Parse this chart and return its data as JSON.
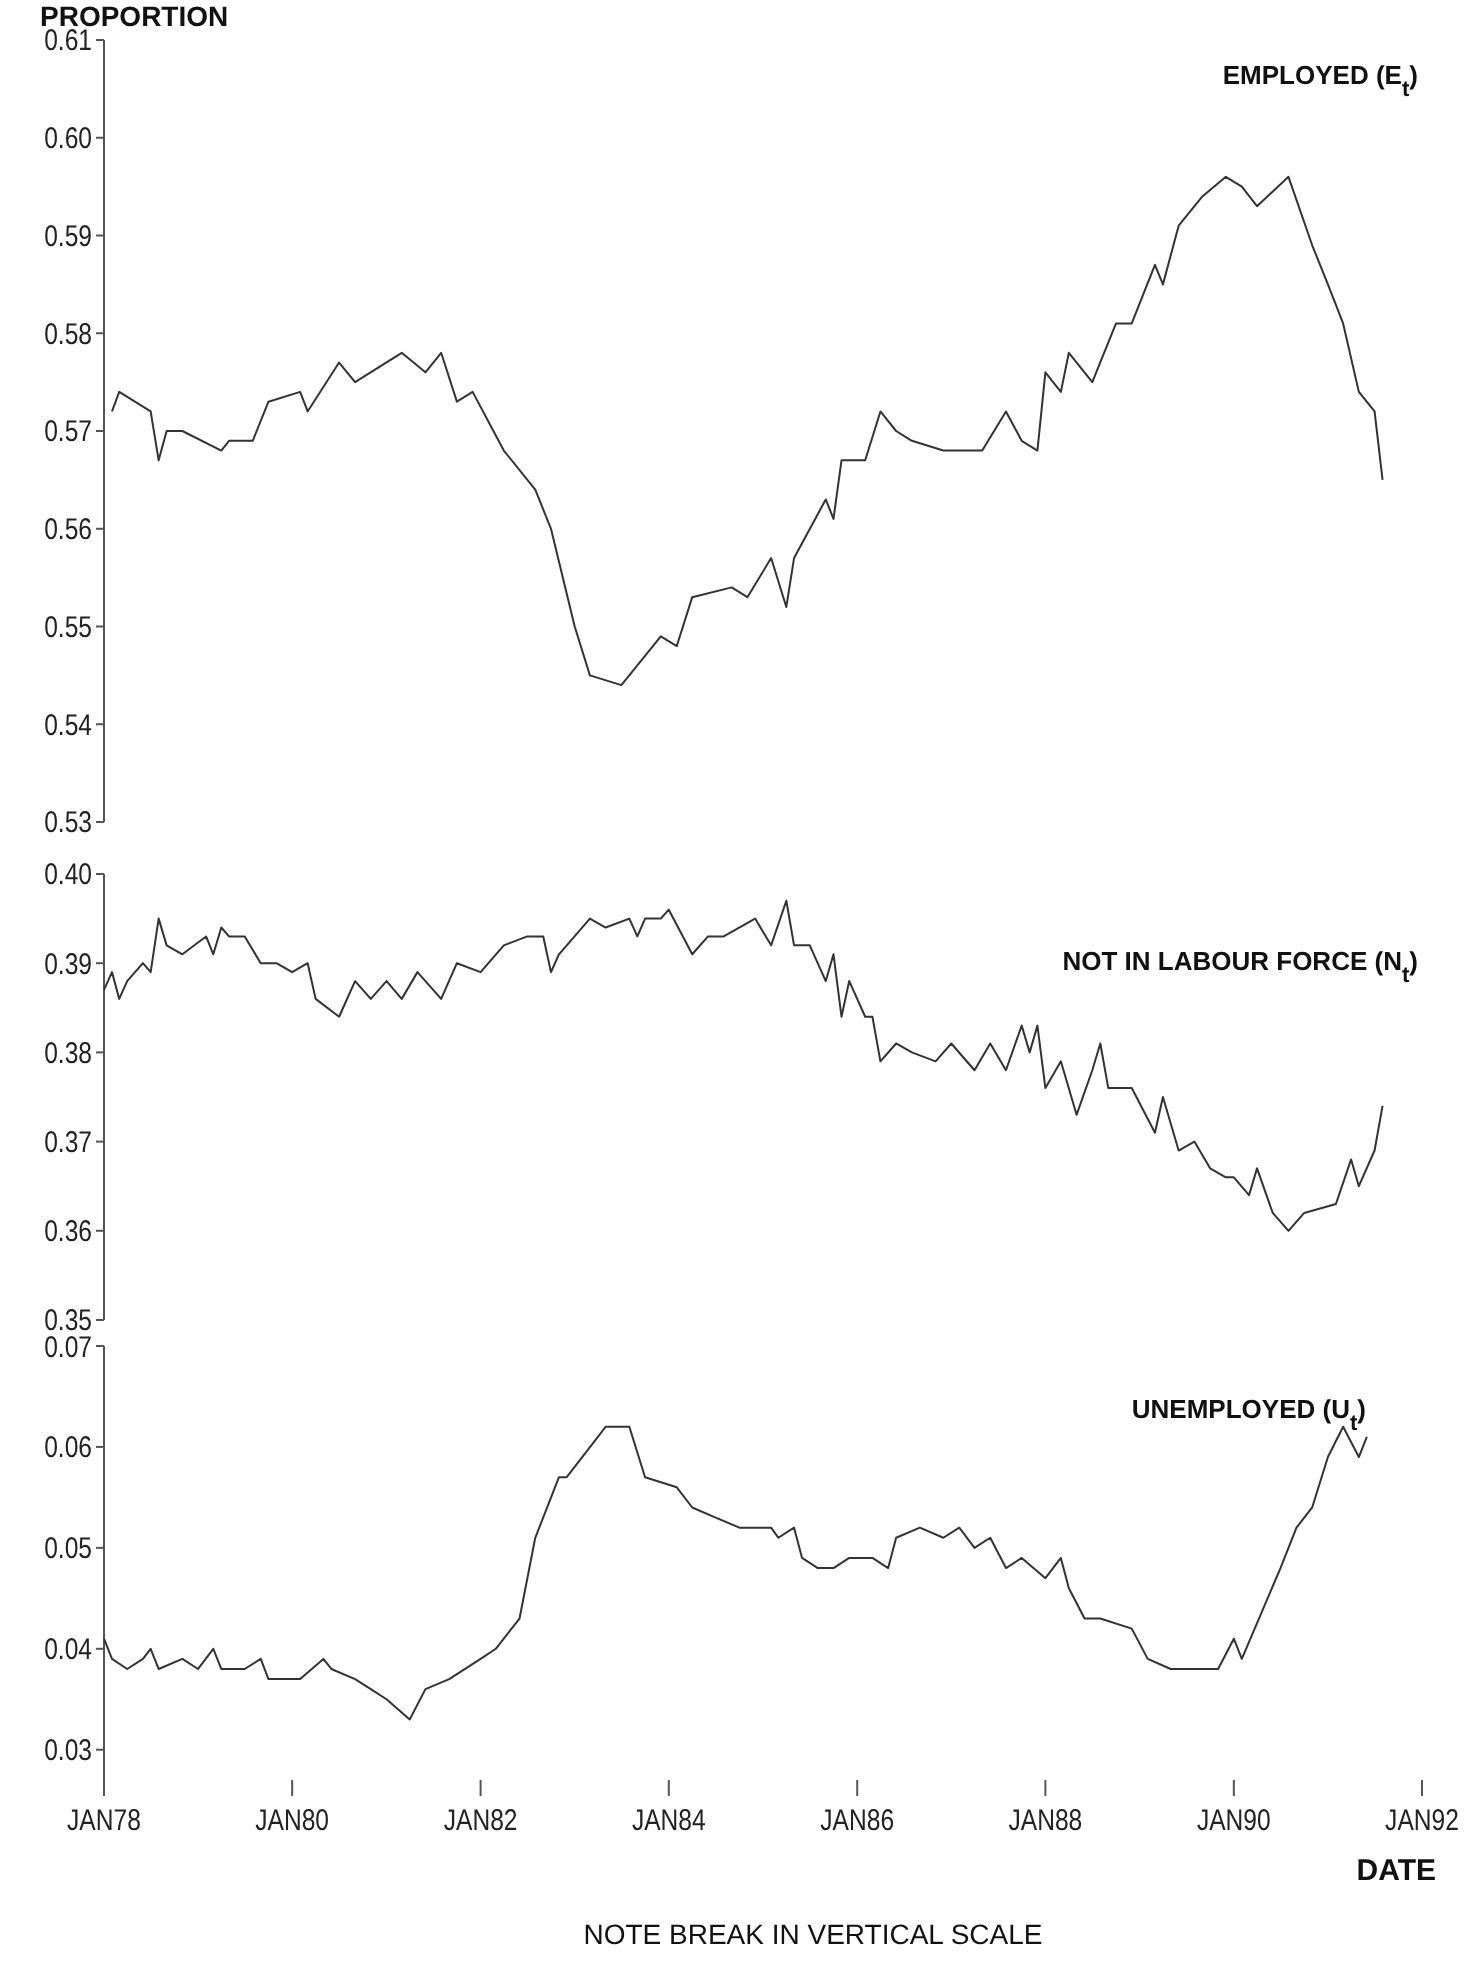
{
  "chart_data": [
    {
      "type": "line",
      "ylabel": "PROPORTION",
      "xlim": [
        "1978-01",
        "1992-01"
      ],
      "ylim": [
        0.53,
        0.61
      ],
      "yticks": [
        0.53,
        0.54,
        0.55,
        0.56,
        0.57,
        0.58,
        0.59,
        {
          "value": 0.6,
          "label": "0.60"
        },
        0.61
      ],
      "tick_labels": "y",
      "series": [
        {
          "name": "EMPLOYED (E$_{t}$)",
          "color": "#333333",
          "x": [
            "1978-02",
            "1978-03",
            "1978-07",
            "1978-08",
            "1978-09",
            "1978-11",
            "1979-04",
            "1979-05",
            "1979-08",
            "1979-10",
            "1980-02",
            "1980-03",
            "1980-07",
            "1980-09",
            "1981-03",
            "1981-06",
            "1981-08",
            "1981-10",
            "1981-12",
            "1982-04",
            "1982-08",
            "1982-10",
            "1983-01",
            "1983-03",
            "1983-07",
            "1983-12",
            "1984-02",
            "1984-04",
            "1984-09",
            "1984-11",
            "1985-02",
            "1985-04",
            "1985-05",
            "1985-09",
            "1985-10",
            "1985-11",
            "1986-02",
            "1986-04",
            "1986-06",
            "1986-08",
            "1986-12",
            "1987-05",
            "1987-08",
            "1987-10",
            "1987-12",
            "1988-01",
            "1988-03",
            "1988-04",
            "1988-07",
            "1988-10",
            "1988-12",
            "1989-03",
            "1989-04",
            "1989-06",
            "1989-09",
            "1989-12",
            "1990-02",
            "1990-04",
            "1990-08",
            "1990-11",
            "1991-01",
            "1991-03",
            "1991-05",
            "1991-07",
            "1991-08"
          ],
          "values": [
            0.572,
            0.574,
            0.572,
            0.567,
            0.57,
            0.57,
            0.568,
            0.569,
            0.569,
            0.573,
            0.574,
            0.572,
            0.577,
            0.575,
            0.578,
            0.576,
            0.578,
            0.573,
            0.574,
            0.568,
            0.564,
            0.56,
            0.55,
            0.545,
            0.544,
            0.549,
            0.548,
            0.553,
            0.554,
            0.553,
            0.557,
            0.552,
            0.557,
            0.563,
            0.561,
            0.567,
            0.567,
            0.572,
            0.57,
            0.569,
            0.568,
            0.568,
            0.572,
            0.569,
            0.568,
            0.576,
            0.574,
            0.578,
            0.575,
            0.581,
            0.581,
            0.587,
            0.585,
            0.591,
            0.594,
            0.596,
            0.595,
            0.593,
            0.596,
            0.589,
            0.585,
            0.581,
            0.574,
            0.572,
            0.565
          ]
        }
      ]
    },
    {
      "type": "line",
      "xlim": [
        "1978-01",
        "1992-01"
      ],
      "ylim": [
        0.35,
        0.4
      ],
      "yticks": [
        0.35,
        0.36,
        0.37,
        0.38,
        0.39,
        {
          "value": 0.4,
          "label": "0.40"
        }
      ],
      "tick_labels": "y",
      "series": [
        {
          "name": "NOT IN LABOUR FORCE  (N$_{t}$)",
          "color": "#333333",
          "x": [
            "1978-01",
            "1978-02",
            "1978-03",
            "1978-04",
            "1978-06",
            "1978-07",
            "1978-08",
            "1978-09",
            "1978-11",
            "1979-02",
            "1979-03",
            "1979-04",
            "1979-05",
            "1979-07",
            "1979-09",
            "1979-11",
            "1980-01",
            "1980-03",
            "1980-04",
            "1980-07",
            "1980-09",
            "1980-11",
            "1981-01",
            "1981-03",
            "1981-05",
            "1981-08",
            "1981-10",
            "1982-01",
            "1982-04",
            "1982-07",
            "1982-09",
            "1982-10",
            "1982-11",
            "1983-03",
            "1983-05",
            "1983-08",
            "1983-09",
            "1983-10",
            "1983-12",
            "1984-01",
            "1984-04",
            "1984-06",
            "1984-08",
            "1984-12",
            "1985-02",
            "1985-04",
            "1985-05",
            "1985-07",
            "1985-09",
            "1985-10",
            "1985-11",
            "1985-12",
            "1986-02",
            "1986-03",
            "1986-04",
            "1986-06",
            "1986-08",
            "1986-11",
            "1987-01",
            "1987-04",
            "1987-06",
            "1987-08",
            "1987-10",
            "1987-11",
            "1987-12",
            "1988-01",
            "1988-03",
            "1988-05",
            "1988-07",
            "1988-08",
            "1988-09",
            "1988-12",
            "1989-03",
            "1989-04",
            "1989-06",
            "1989-08",
            "1989-10",
            "1989-12",
            "1990-01",
            "1990-03",
            "1990-04",
            "1990-06",
            "1990-08",
            "1990-10",
            "1991-02",
            "1991-04",
            "1991-05",
            "1991-07",
            "1991-08"
          ],
          "values": [
            0.387,
            0.389,
            0.386,
            0.388,
            0.39,
            0.389,
            0.395,
            0.392,
            0.391,
            0.393,
            0.391,
            0.394,
            0.393,
            0.393,
            0.39,
            0.39,
            0.389,
            0.39,
            0.386,
            0.384,
            0.388,
            0.386,
            0.388,
            0.386,
            0.389,
            0.386,
            0.39,
            0.389,
            0.392,
            0.393,
            0.393,
            0.389,
            0.391,
            0.395,
            0.394,
            0.395,
            0.393,
            0.395,
            0.395,
            0.396,
            0.391,
            0.393,
            0.393,
            0.395,
            0.392,
            0.397,
            0.392,
            0.392,
            0.388,
            0.391,
            0.384,
            0.388,
            0.384,
            0.384,
            0.379,
            0.381,
            0.38,
            0.379,
            0.381,
            0.378,
            0.381,
            0.378,
            0.383,
            0.38,
            0.383,
            0.376,
            0.379,
            0.373,
            0.378,
            0.381,
            0.376,
            0.376,
            0.371,
            0.375,
            0.369,
            0.37,
            0.367,
            0.366,
            0.366,
            0.364,
            0.367,
            0.362,
            0.36,
            0.362,
            0.363,
            0.368,
            0.365,
            0.369,
            0.374
          ]
        }
      ]
    },
    {
      "type": "line",
      "xlabel": "DATE",
      "annotations": [
        "NOTE BREAK IN VERTICAL SCALE"
      ],
      "xlim": [
        "1978-01",
        "1992-01"
      ],
      "xticks": [
        {
          "value": "1978-01",
          "label": "JAN78"
        },
        {
          "value": "1980-01",
          "label": "JAN80"
        },
        {
          "value": "1982-01",
          "label": "JAN82"
        },
        {
          "value": "1984-01",
          "label": "JAN84"
        },
        {
          "value": "1986-01",
          "label": "JAN86"
        },
        {
          "value": "1988-01",
          "label": "JAN88"
        },
        {
          "value": "1990-01",
          "label": "JAN90"
        },
        {
          "value": "1992-01",
          "label": "JAN92"
        }
      ],
      "ylim": [
        0.027,
        0.07
      ],
      "yticks": [
        0.03,
        0.04,
        0.05,
        0.06,
        0.07
      ],
      "series": [
        {
          "name": "UNEMPLOYED  (U$_{t}$)",
          "color": "#333333",
          "x": [
            "1978-01",
            "1978-02",
            "1978-04",
            "1978-06",
            "1978-07",
            "1978-08",
            "1978-11",
            "1979-01",
            "1979-03",
            "1979-04",
            "1979-07",
            "1979-09",
            "1979-10",
            "1980-02",
            "1980-05",
            "1980-06",
            "1980-09",
            "1980-11",
            "1981-01",
            "1981-04",
            "1981-06",
            "1981-09",
            "1982-01",
            "1982-03",
            "1982-06",
            "1982-08",
            "1982-11",
            "1982-12",
            "1983-04",
            "1983-05",
            "1983-08",
            "1983-10",
            "1984-02",
            "1984-04",
            "1984-07",
            "1984-10",
            "1985-02",
            "1985-03",
            "1985-05",
            "1985-06",
            "1985-08",
            "1985-10",
            "1985-12",
            "1986-03",
            "1986-05",
            "1986-06",
            "1986-09",
            "1986-12",
            "1987-02",
            "1987-04",
            "1987-06",
            "1987-08",
            "1987-10",
            "1988-01",
            "1988-03",
            "1988-04",
            "1988-06",
            "1988-08",
            "1988-12",
            "1989-02",
            "1989-05",
            "1989-09",
            "1989-11",
            "1990-01",
            "1990-02",
            "1990-07",
            "1990-09",
            "1990-11",
            "1991-01",
            "1991-03",
            "1991-05",
            "1991-06"
          ],
          "values": [
            0.041,
            0.039,
            0.038,
            0.039,
            0.04,
            0.038,
            0.039,
            0.038,
            0.04,
            0.038,
            0.038,
            0.039,
            0.037,
            0.037,
            0.039,
            0.038,
            0.037,
            0.036,
            0.035,
            0.033,
            0.036,
            0.037,
            0.039,
            0.04,
            0.043,
            0.051,
            0.057,
            0.057,
            0.061,
            0.062,
            0.062,
            0.057,
            0.056,
            0.054,
            0.053,
            0.052,
            0.052,
            0.051,
            0.052,
            0.049,
            0.048,
            0.048,
            0.049,
            0.049,
            0.048,
            0.051,
            0.052,
            0.051,
            0.052,
            0.05,
            0.051,
            0.048,
            0.049,
            0.047,
            0.049,
            0.046,
            0.043,
            0.043,
            0.042,
            0.039,
            0.038,
            0.038,
            0.038,
            0.041,
            0.039,
            0.048,
            0.052,
            0.054,
            0.059,
            0.062,
            0.059,
            0.061
          ]
        }
      ]
    }
  ]
}
